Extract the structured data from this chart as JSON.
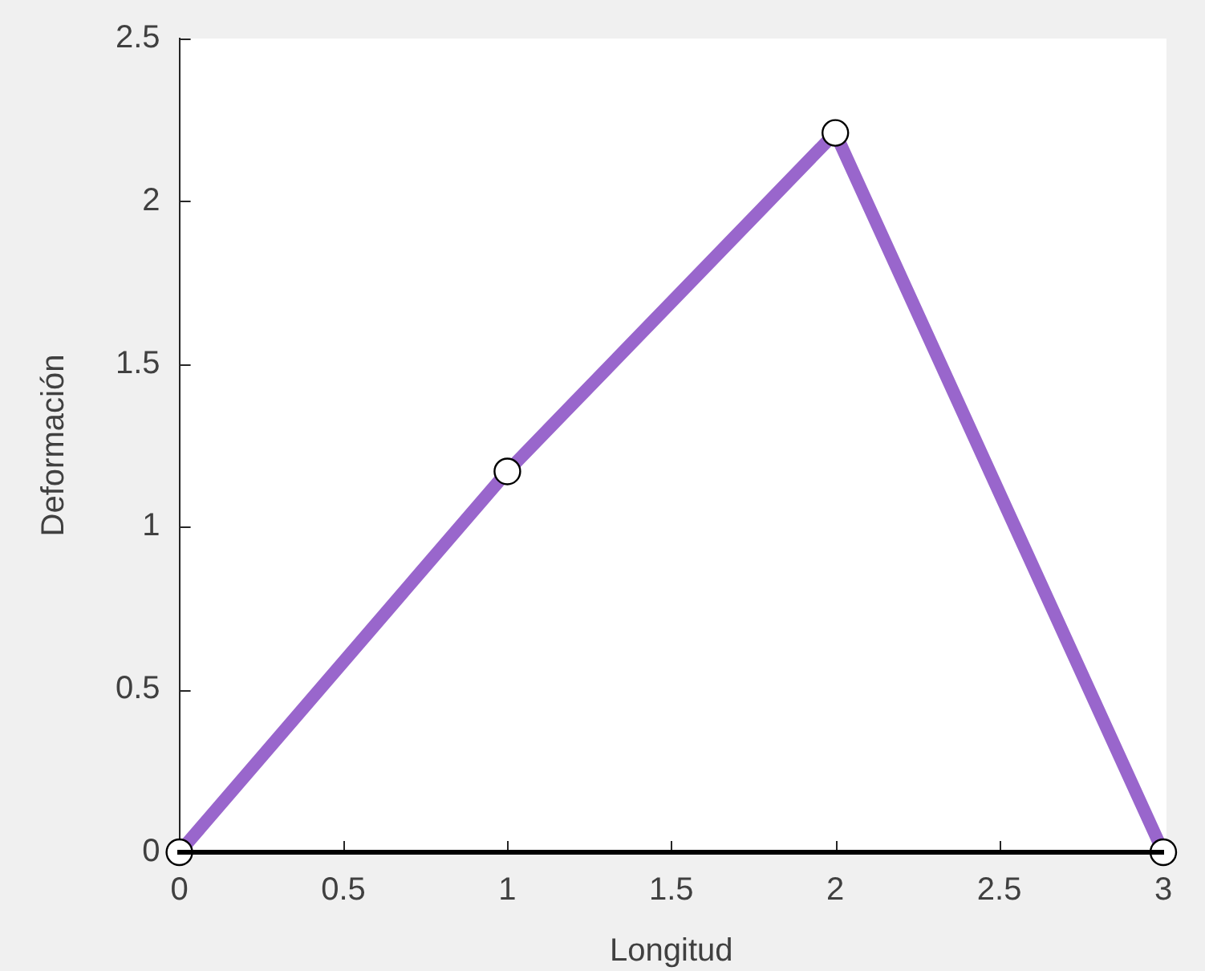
{
  "chart_data": {
    "type": "line",
    "xlabel": "Longitud",
    "ylabel": "Deformación",
    "x": [
      0,
      1,
      2,
      3
    ],
    "series": [
      {
        "color": "#9966cc",
        "values": [
          0,
          1.17,
          2.21,
          0
        ],
        "marker": "circle"
      }
    ],
    "xlim": [
      0,
      3
    ],
    "xticks": [
      0,
      0.5,
      1,
      1.5,
      2,
      2.5,
      3
    ],
    "ylim": [
      0,
      2.5
    ],
    "yticks": [
      0,
      0.5,
      1,
      1.5,
      2,
      2.5
    ],
    "grid": false,
    "legend": false
  }
}
